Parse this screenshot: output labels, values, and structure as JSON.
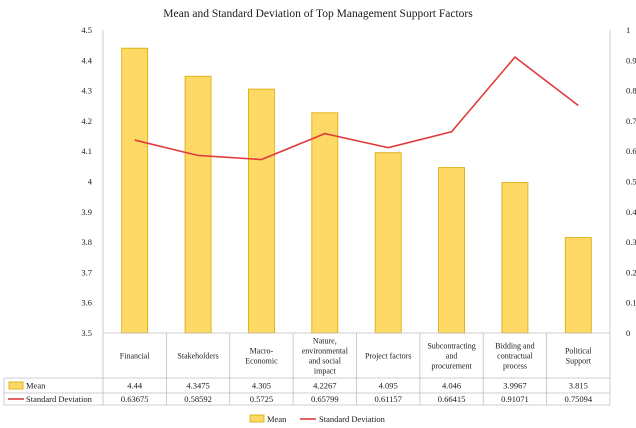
{
  "chart_data": {
    "type": "bar",
    "title": "Mean and Standard Deviation  of Top Management  Support Factors",
    "categories": [
      [
        "Financial"
      ],
      [
        "Stakeholders"
      ],
      [
        "Macro-",
        "Economic"
      ],
      [
        "Nature,",
        "environmental",
        "and social",
        "impact"
      ],
      [
        "Project factors"
      ],
      [
        "Subcontracting",
        "and",
        "procurement"
      ],
      [
        "Bidding and",
        "contractual",
        "process"
      ],
      [
        "Political",
        "Support"
      ]
    ],
    "series": [
      {
        "name": "Mean",
        "type": "bar",
        "axis": "left",
        "color": "#FFD966",
        "values": [
          4.44,
          4.3475,
          4.305,
          4.2267,
          4.095,
          4.046,
          3.9967,
          3.815
        ],
        "labels": [
          "4.44",
          "4.3475",
          "4.305",
          "4.2267",
          "4.095",
          "4.046",
          "3.9967",
          "3.815"
        ]
      },
      {
        "name": "Standard Deviation",
        "type": "line",
        "axis": "right",
        "color": "#E03C3C",
        "values": [
          0.63675,
          0.58592,
          0.5725,
          0.65799,
          0.61157,
          0.66415,
          0.91071,
          0.75094
        ],
        "labels": [
          "0.63675",
          "0.58592",
          "0.5725",
          "0.65799",
          "0.61157",
          "0.66415",
          "0.91071",
          "0.75094"
        ]
      }
    ],
    "y_left": {
      "ylim": [
        3.5,
        4.5
      ],
      "ticks": [
        3.5,
        3.6,
        3.7,
        3.8,
        3.9,
        4.0,
        4.1,
        4.2,
        4.3,
        4.4,
        4.5
      ],
      "tick_labels": [
        "3.5",
        "3.6",
        "3.7",
        "3.8",
        "3.9",
        "4",
        "4.1",
        "4.2",
        "4.3",
        "4.4",
        "4.5"
      ]
    },
    "y_right": {
      "ylim": [
        0,
        1
      ],
      "ticks": [
        0,
        0.1,
        0.2,
        0.3,
        0.4,
        0.5,
        0.6,
        0.7,
        0.8,
        0.9,
        1.0
      ],
      "tick_labels": [
        "0",
        "0.1",
        "0.2",
        "0.3",
        "0.4",
        "0.5",
        "0.6",
        "0.7",
        "0.8",
        "0.9",
        "1"
      ]
    },
    "grid": false,
    "data_table": true,
    "legend_position": "bottom"
  }
}
